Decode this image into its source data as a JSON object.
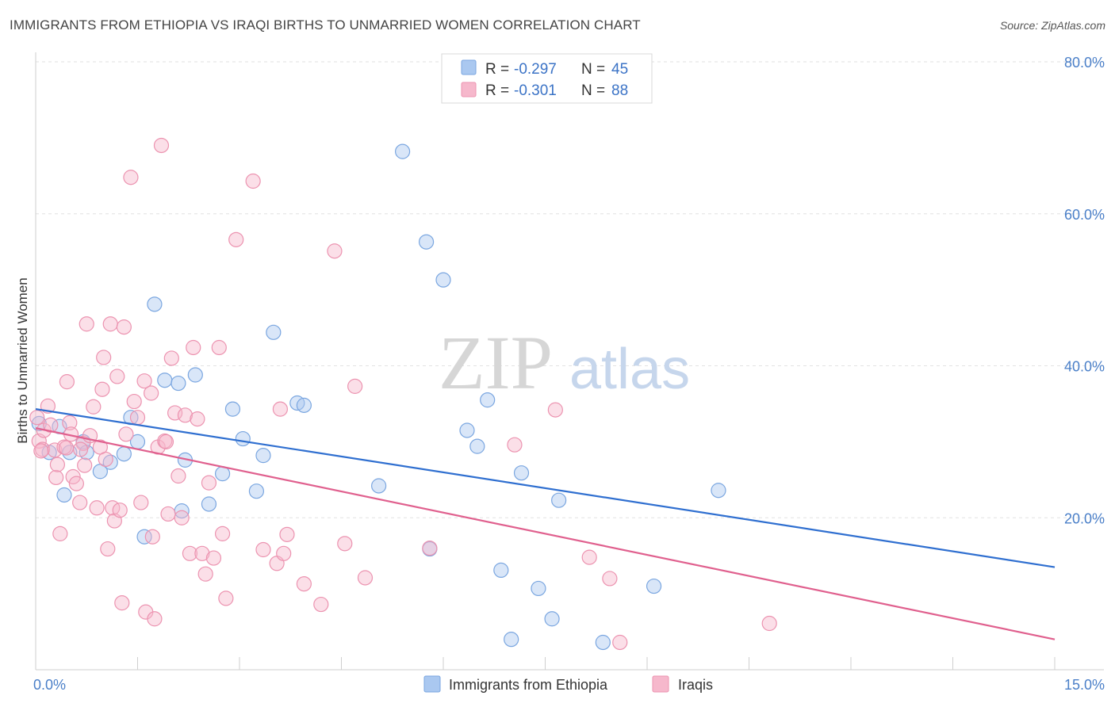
{
  "title": "IMMIGRANTS FROM ETHIOPIA VS IRAQI BIRTHS TO UNMARRIED WOMEN CORRELATION CHART",
  "source": "Source: ZipAtlas.com",
  "watermark": {
    "zip": "ZIP",
    "atlas": "atlas"
  },
  "legend": {
    "rows": [
      {
        "r_label": "R =",
        "r_value": "-0.297",
        "n_label": "N =",
        "n_value": "45",
        "color": "#aac8f0"
      },
      {
        "r_label": "R =",
        "r_value": "-0.301",
        "n_label": "N =",
        "n_value": "88",
        "color": "#f6b8cc"
      }
    ]
  },
  "bottom_legend": [
    {
      "label": "Immigrants from Ethiopia",
      "color": "#aac8f0"
    },
    {
      "label": "Iraqis",
      "color": "#f6b8cc"
    }
  ],
  "chart_data": {
    "type": "scatter",
    "title": "IMMIGRANTS FROM ETHIOPIA VS IRAQI BIRTHS TO UNMARRIED WOMEN CORRELATION CHART",
    "xlabel": "",
    "ylabel": "Births to Unmarried Women",
    "xlim": [
      0,
      15
    ],
    "ylim": [
      0,
      80
    ],
    "x_tick_labels": [
      {
        "value": 0,
        "label": "0.0%"
      },
      {
        "value": 15,
        "label": "15.0%"
      }
    ],
    "y_tick_labels": [
      {
        "value": 20,
        "label": "20.0%"
      },
      {
        "value": 40,
        "label": "40.0%"
      },
      {
        "value": 60,
        "label": "60.0%"
      },
      {
        "value": 80,
        "label": "80.0%"
      }
    ],
    "grid": true,
    "legend_position": "top-center",
    "series": [
      {
        "name": "Immigrants from Ethiopia",
        "color": "#aac8f0",
        "line_color": "#2f6fd0",
        "trend": {
          "x": [
            0,
            15
          ],
          "y": [
            34.3,
            13.5
          ]
        },
        "points": [
          [
            0.05,
            32.4
          ],
          [
            0.2,
            28.6
          ],
          [
            0.35,
            32.0
          ],
          [
            0.42,
            23.0
          ],
          [
            0.5,
            28.6
          ],
          [
            0.7,
            30.0
          ],
          [
            0.75,
            28.6
          ],
          [
            0.95,
            26.1
          ],
          [
            1.1,
            27.3
          ],
          [
            1.3,
            28.4
          ],
          [
            1.4,
            33.2
          ],
          [
            1.5,
            30.0
          ],
          [
            1.6,
            17.5
          ],
          [
            1.75,
            48.1
          ],
          [
            1.9,
            38.1
          ],
          [
            2.1,
            37.7
          ],
          [
            2.15,
            20.9
          ],
          [
            2.2,
            27.6
          ],
          [
            2.35,
            38.8
          ],
          [
            2.55,
            21.8
          ],
          [
            2.75,
            25.8
          ],
          [
            2.9,
            34.3
          ],
          [
            3.05,
            30.4
          ],
          [
            3.25,
            23.5
          ],
          [
            3.35,
            28.2
          ],
          [
            3.5,
            44.4
          ],
          [
            3.85,
            35.1
          ],
          [
            3.95,
            34.8
          ],
          [
            5.05,
            24.2
          ],
          [
            5.4,
            68.2
          ],
          [
            5.75,
            56.3
          ],
          [
            5.8,
            15.9
          ],
          [
            6.0,
            51.3
          ],
          [
            6.35,
            31.5
          ],
          [
            6.5,
            29.4
          ],
          [
            6.65,
            35.5
          ],
          [
            6.85,
            13.1
          ],
          [
            7.0,
            4.0
          ],
          [
            7.15,
            25.9
          ],
          [
            7.4,
            10.7
          ],
          [
            7.6,
            6.7
          ],
          [
            7.7,
            22.3
          ],
          [
            8.35,
            3.6
          ],
          [
            9.1,
            11.0
          ],
          [
            10.05,
            23.6
          ]
        ]
      },
      {
        "name": "Iraqis",
        "color": "#f6b8cc",
        "line_color": "#e0608e",
        "trend": {
          "x": [
            0,
            15
          ],
          "y": [
            31.8,
            4.0
          ]
        },
        "points": [
          [
            0.02,
            33.2
          ],
          [
            0.05,
            30.1
          ],
          [
            0.1,
            29.0
          ],
          [
            0.12,
            31.5
          ],
          [
            0.18,
            34.7
          ],
          [
            0.22,
            32.2
          ],
          [
            0.28,
            28.9
          ],
          [
            0.3,
            25.3
          ],
          [
            0.32,
            27.0
          ],
          [
            0.36,
            17.9
          ],
          [
            0.42,
            29.3
          ],
          [
            0.46,
            37.9
          ],
          [
            0.5,
            32.5
          ],
          [
            0.52,
            31.0
          ],
          [
            0.55,
            25.4
          ],
          [
            0.6,
            24.5
          ],
          [
            0.65,
            22.0
          ],
          [
            0.7,
            29.8
          ],
          [
            0.72,
            26.9
          ],
          [
            0.75,
            45.5
          ],
          [
            0.8,
            30.8
          ],
          [
            0.85,
            34.6
          ],
          [
            0.9,
            21.3
          ],
          [
            0.95,
            29.3
          ],
          [
            0.98,
            36.9
          ],
          [
            1.0,
            41.1
          ],
          [
            1.03,
            27.7
          ],
          [
            1.06,
            15.9
          ],
          [
            1.1,
            45.5
          ],
          [
            1.13,
            21.3
          ],
          [
            1.16,
            19.6
          ],
          [
            1.2,
            38.6
          ],
          [
            1.24,
            21.0
          ],
          [
            1.27,
            8.8
          ],
          [
            1.3,
            45.1
          ],
          [
            1.33,
            31.0
          ],
          [
            1.4,
            64.8
          ],
          [
            1.45,
            35.3
          ],
          [
            1.5,
            33.2
          ],
          [
            1.55,
            22.0
          ],
          [
            1.6,
            38.0
          ],
          [
            1.62,
            7.6
          ],
          [
            1.7,
            36.4
          ],
          [
            1.72,
            17.5
          ],
          [
            1.75,
            6.7
          ],
          [
            1.8,
            29.3
          ],
          [
            1.85,
            69.0
          ],
          [
            1.9,
            30.1
          ],
          [
            1.95,
            20.5
          ],
          [
            2.0,
            41.0
          ],
          [
            2.05,
            33.8
          ],
          [
            2.1,
            25.5
          ],
          [
            2.15,
            20.0
          ],
          [
            2.2,
            33.5
          ],
          [
            2.27,
            15.3
          ],
          [
            2.32,
            42.4
          ],
          [
            2.38,
            33.0
          ],
          [
            2.45,
            15.3
          ],
          [
            2.5,
            12.6
          ],
          [
            2.55,
            24.6
          ],
          [
            2.62,
            14.7
          ],
          [
            2.7,
            42.4
          ],
          [
            2.75,
            17.9
          ],
          [
            2.8,
            9.4
          ],
          [
            2.95,
            56.6
          ],
          [
            3.2,
            64.3
          ],
          [
            3.35,
            15.8
          ],
          [
            3.55,
            14.0
          ],
          [
            3.6,
            34.3
          ],
          [
            3.65,
            15.3
          ],
          [
            3.7,
            17.8
          ],
          [
            3.95,
            11.3
          ],
          [
            4.2,
            8.6
          ],
          [
            4.4,
            55.1
          ],
          [
            4.55,
            16.6
          ],
          [
            4.7,
            37.3
          ],
          [
            4.85,
            12.1
          ],
          [
            5.8,
            16.0
          ],
          [
            7.05,
            29.6
          ],
          [
            7.65,
            34.2
          ],
          [
            8.15,
            14.8
          ],
          [
            8.45,
            12.0
          ],
          [
            8.6,
            3.6
          ],
          [
            10.8,
            6.1
          ],
          [
            0.08,
            28.8
          ],
          [
            0.45,
            29.2
          ],
          [
            1.92,
            30.0
          ],
          [
            0.66,
            29.0
          ]
        ]
      }
    ]
  }
}
